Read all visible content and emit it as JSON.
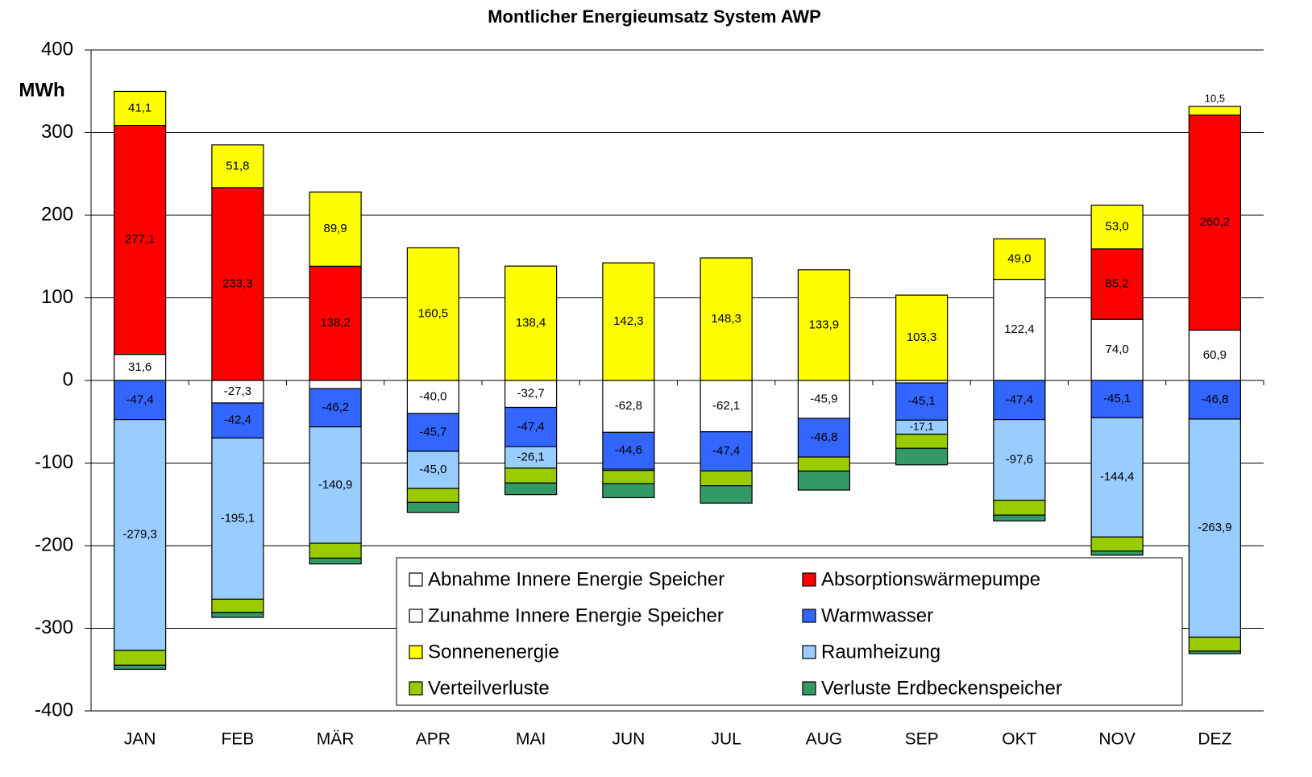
{
  "chart_data": {
    "type": "stacked_bar",
    "title": "Montlicher Energieumsatz System AWP",
    "y_label": "MWh",
    "categories": [
      "JAN",
      "FEB",
      "MÄR",
      "APR",
      "MAI",
      "JUN",
      "JUL",
      "AUG",
      "SEP",
      "OKT",
      "NOV",
      "DEZ"
    ],
    "ylim": [
      -400,
      400
    ],
    "yticks": [
      -400,
      -300,
      -200,
      -100,
      0,
      100,
      200,
      300,
      400
    ],
    "grid": true,
    "series": [
      {
        "name": "Abnahme Innere Energie Speicher",
        "color": "#ffffff",
        "values": [
          31.6,
          null,
          null,
          null,
          null,
          null,
          null,
          null,
          null,
          122.4,
          74.0,
          60.9
        ],
        "value_labels": [
          "31,6",
          null,
          null,
          null,
          null,
          null,
          null,
          null,
          null,
          "122,4",
          "74,0",
          "60,9"
        ]
      },
      {
        "name": "Absorptionswärmepumpe",
        "color": "#ff0000",
        "values": [
          277.1,
          233.3,
          138.2,
          null,
          null,
          null,
          null,
          null,
          null,
          null,
          85.2,
          260.2
        ],
        "value_labels": [
          "277,1",
          "233,3",
          "138,2",
          null,
          null,
          null,
          null,
          null,
          null,
          null,
          "85,2",
          "260,2"
        ]
      },
      {
        "name": "Zunahme Innere Energie Speicher",
        "color": "#ffffff",
        "values": [
          null,
          -27.3,
          -10,
          -40.0,
          -32.7,
          -62.8,
          -62.1,
          -45.9,
          -3,
          null,
          null,
          null
        ],
        "value_labels": [
          null,
          "-27,3",
          null,
          "-40,0",
          "-32,7",
          "-62,8",
          "-62,1",
          "-45,9",
          null,
          null,
          null,
          null
        ]
      },
      {
        "name": "Warmwasser",
        "color": "#3366ff",
        "values": [
          -47.4,
          -42.4,
          -46.2,
          -45.7,
          -47.4,
          -44.6,
          -47.4,
          -46.8,
          -45.1,
          -47.4,
          -45.1,
          -46.8
        ],
        "value_labels": [
          "-47,4",
          "-42,4",
          "-46,2",
          "-45,7",
          "-47,4",
          "-44,6",
          "-47,4",
          "-46,8",
          "-45,1",
          "-47,4",
          "-45,1",
          "-46,8"
        ]
      },
      {
        "name": "Sonnenenergie",
        "color": "#ffff00",
        "values": [
          41.1,
          51.8,
          89.9,
          160.5,
          138.4,
          142.3,
          148.3,
          133.9,
          103.3,
          49.0,
          53.0,
          10.5
        ],
        "value_labels": [
          "41,1",
          "51,8",
          "89,9",
          "160,5",
          "138,4",
          "142,3",
          "148,3",
          "133,9",
          "103,3",
          "49,0",
          "53,0",
          "10,5"
        ]
      },
      {
        "name": "Raumheizung",
        "color": "#99ccff",
        "values": [
          -279.3,
          -195.1,
          -140.9,
          -45.0,
          -26.1,
          -1.5,
          null,
          null,
          -17.1,
          -97.6,
          -144.4,
          -263.9
        ],
        "value_labels": [
          "-279,3",
          "-195,1",
          "-140,9",
          "-45,0",
          "-26,1",
          null,
          null,
          null,
          "-17,1",
          "-97,6",
          "-144,4",
          "-263,9"
        ]
      },
      {
        "name": "Verteilverluste",
        "color": "#99cc00",
        "values": [
          -18,
          -16,
          -18,
          -17,
          -18,
          -16,
          -18,
          -17,
          -17,
          -18,
          -17,
          -17
        ]
      },
      {
        "name": "Verluste Erdbeckenspeicher",
        "color": "#339966",
        "values": [
          -5,
          -6,
          -7,
          -12,
          -14,
          -17,
          -21,
          -23,
          -20,
          -7,
          -5,
          -3
        ]
      }
    ]
  }
}
